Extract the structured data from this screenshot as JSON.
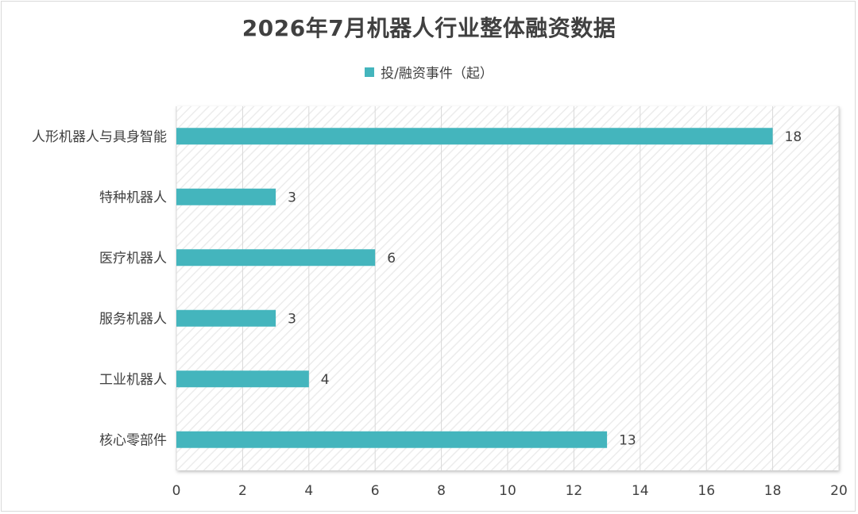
{
  "chart_data": {
    "type": "bar",
    "orientation": "horizontal",
    "title": "2026年7月机器人行业整体融资数据",
    "categories": [
      "人形机器人与具身智能",
      "特种机器人",
      "医疗机器人",
      "服务机器人",
      "工业机器人",
      "核心零部件"
    ],
    "series": [
      {
        "name": "投/融资事件（起）",
        "values": [
          18,
          3,
          6,
          3,
          4,
          13
        ],
        "color": "#44b5bd"
      }
    ],
    "xlim": [
      0,
      20
    ],
    "xticks": [
      "0",
      "2",
      "4",
      "6",
      "8",
      "10",
      "12",
      "14",
      "16",
      "18",
      "20"
    ],
    "xlabel": "",
    "ylabel": "",
    "grid": "vertical",
    "legend_position": "top-center",
    "data_labels": true
  }
}
